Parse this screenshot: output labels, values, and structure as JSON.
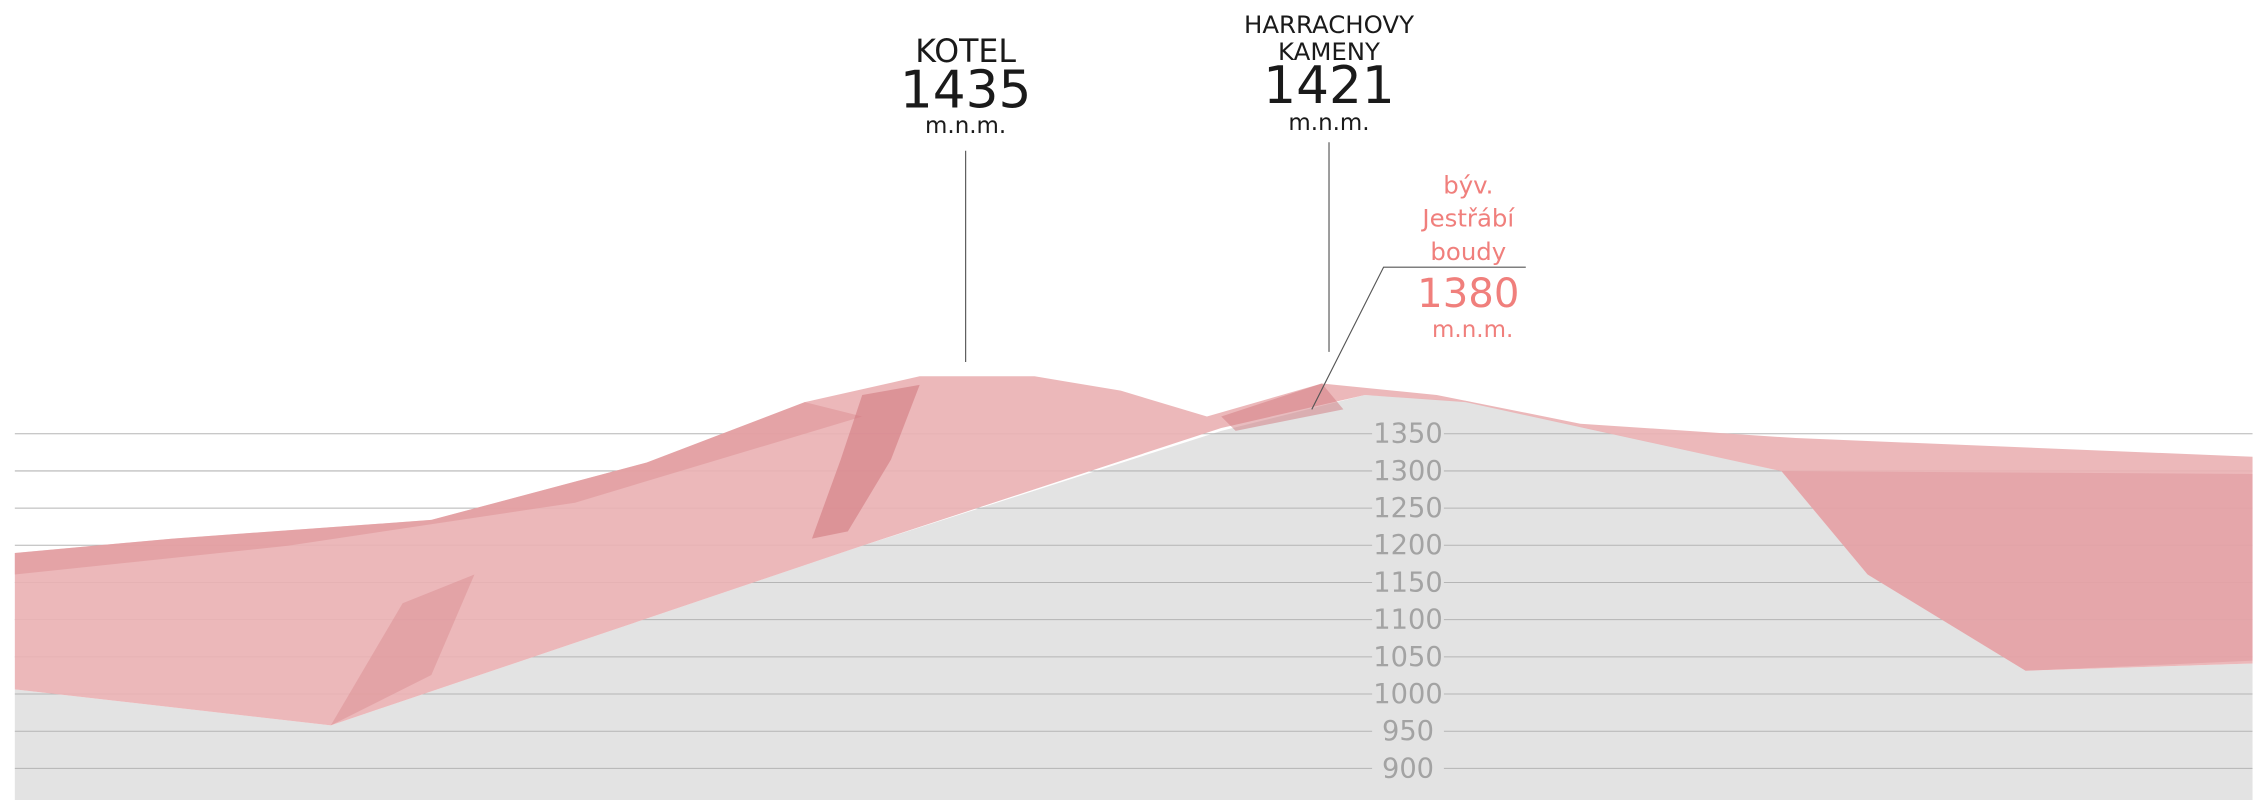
{
  "peaks": [
    {
      "name": [
        "KOTEL"
      ],
      "elevation": 1435,
      "unit": "m.n.m."
    },
    {
      "name": [
        "HARRACHOVY",
        "KAMENY"
      ],
      "elevation": 1421,
      "unit": "m.n.m."
    },
    {
      "name": [
        "býv.",
        "Jestřábí",
        "boudy"
      ],
      "elevation": 1380,
      "unit": "m.n.m."
    }
  ],
  "axis": {
    "ticks": [
      1350,
      1300,
      1250,
      1200,
      1150,
      1100,
      1050,
      1000,
      950,
      900
    ]
  }
}
